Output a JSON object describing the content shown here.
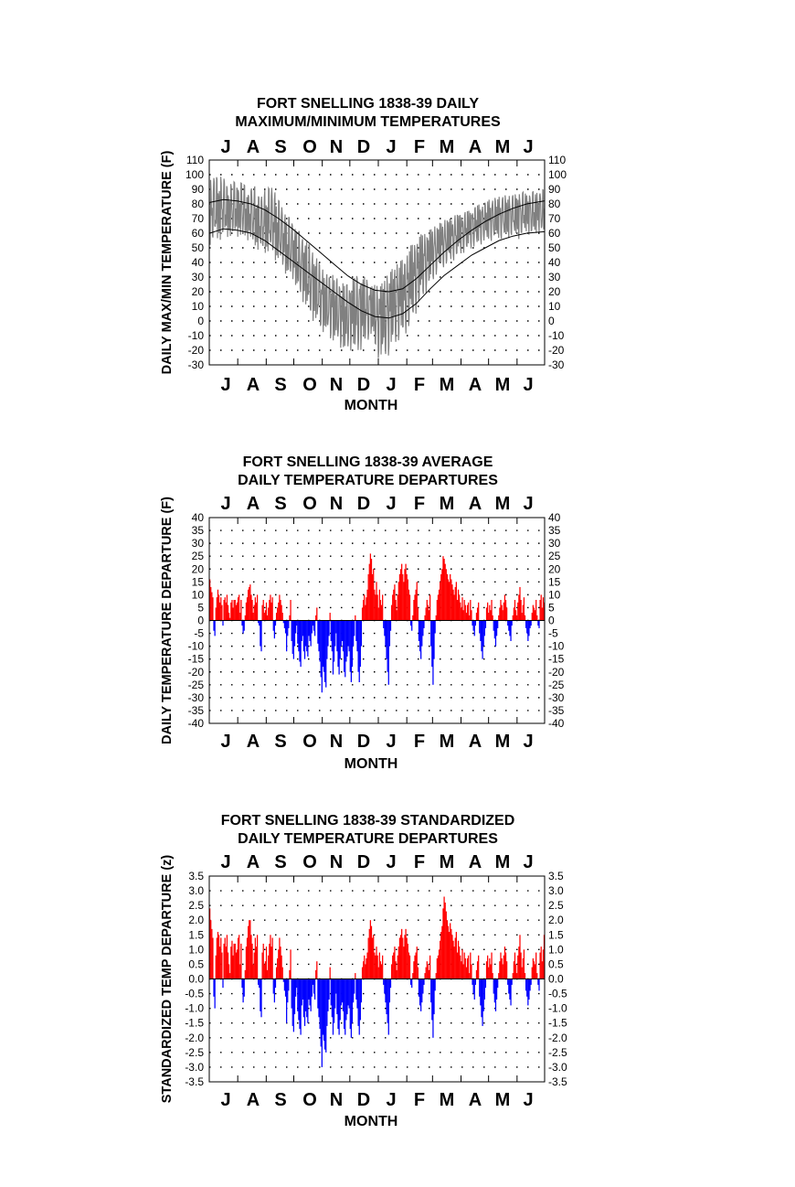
{
  "chart_data": [
    {
      "type": "line",
      "title_lines": [
        "FORT SNELLING 1838-39 DAILY",
        "MAXIMUM/MINIMUM TEMPERATURES"
      ],
      "xlabel": "MONTH",
      "ylabel": "DAILY MAX/MIN TEMPERATURE (F)",
      "ylim": [
        -30,
        110
      ],
      "yticks": [
        "110",
        "100",
        "90",
        "80",
        "70",
        "60",
        "50",
        "40",
        "30",
        "20",
        "10",
        "0",
        "-10",
        "-20",
        "-30"
      ],
      "months": [
        "J",
        "A",
        "S",
        "O",
        "N",
        "D",
        "J",
        "F",
        "M",
        "A",
        "M",
        "J"
      ],
      "grid": true,
      "colors": {
        "observed": "#808080",
        "normals": "#000000"
      },
      "series": [
        {
          "role": "observed-envelope",
          "x": [
            0,
            7,
            14,
            21,
            28,
            35,
            42,
            49,
            56,
            63,
            70,
            77,
            84,
            91,
            98,
            105,
            112,
            119,
            126,
            133,
            140,
            147,
            154,
            161,
            168,
            175,
            182,
            189,
            196,
            203,
            210,
            217,
            224,
            231,
            238,
            245,
            252,
            259,
            266,
            273,
            280,
            287,
            294,
            301,
            308,
            315,
            322,
            329,
            336,
            343,
            350,
            357,
            364
          ],
          "high": [
            96,
            100,
            98,
            93,
            96,
            95,
            90,
            92,
            85,
            93,
            90,
            80,
            72,
            68,
            60,
            56,
            48,
            40,
            32,
            32,
            28,
            25,
            28,
            32,
            30,
            26,
            24,
            28,
            34,
            40,
            42,
            50,
            56,
            60,
            62,
            65,
            68,
            70,
            72,
            74,
            75,
            78,
            80,
            82,
            84,
            85,
            86,
            86,
            88,
            88,
            88,
            89,
            90
          ],
          "low": [
            52,
            54,
            56,
            57,
            58,
            56,
            55,
            50,
            46,
            46,
            42,
            38,
            30,
            27,
            16,
            8,
            0,
            -5,
            -10,
            -14,
            -17,
            -22,
            -20,
            -22,
            -18,
            -10,
            -25,
            -28,
            -22,
            -15,
            -12,
            -5,
            5,
            15,
            22,
            30,
            36,
            38,
            42,
            45,
            48,
            50,
            52,
            54,
            55,
            56,
            55,
            58,
            56,
            60,
            58,
            60,
            58
          ]
        },
        {
          "role": "normal-max",
          "x": [
            0,
            15,
            30,
            45,
            60,
            75,
            90,
            105,
            120,
            135,
            150,
            165,
            180,
            195,
            210,
            225,
            240,
            255,
            270,
            285,
            300,
            315,
            330,
            345,
            364
          ],
          "values": [
            81,
            83,
            82,
            80,
            76,
            70,
            63,
            55,
            47,
            39,
            31,
            25,
            21,
            20,
            22,
            29,
            38,
            47,
            55,
            62,
            68,
            73,
            77,
            80,
            82
          ]
        },
        {
          "role": "normal-min",
          "x": [
            0,
            15,
            30,
            45,
            60,
            75,
            90,
            105,
            120,
            135,
            150,
            165,
            180,
            195,
            210,
            225,
            240,
            255,
            270,
            285,
            300,
            315,
            330,
            345,
            364
          ],
          "values": [
            60,
            63,
            62,
            60,
            55,
            48,
            41,
            34,
            27,
            20,
            13,
            7,
            3,
            2,
            5,
            12,
            22,
            31,
            38,
            45,
            50,
            55,
            58,
            60,
            61
          ]
        }
      ]
    },
    {
      "type": "bar",
      "title_lines": [
        "FORT SNELLING 1838-39 AVERAGE",
        "DAILY TEMPERATURE DEPARTURES"
      ],
      "xlabel": "MONTH",
      "ylabel": "DAILY TEMPERATURE DEPARTURE (F)",
      "ylim": [
        -40,
        40
      ],
      "yticks": [
        "40",
        "35",
        "30",
        "25",
        "20",
        "15",
        "10",
        "5",
        "0",
        "-5",
        "-10",
        "-15",
        "-20",
        "-25",
        "-30",
        "-35",
        "-40"
      ],
      "months": [
        "J",
        "A",
        "S",
        "O",
        "N",
        "D",
        "J",
        "F",
        "M",
        "A",
        "M",
        "J"
      ],
      "grid": true,
      "colors": {
        "positive": "#ff0000",
        "negative": "#0000ff"
      },
      "values": [
        16,
        13,
        11,
        9,
        -4,
        -6,
        5,
        9,
        12,
        10,
        7,
        9,
        6,
        -2,
        8,
        9,
        7,
        10,
        6,
        3,
        1,
        7,
        8,
        5,
        8,
        8,
        6,
        7,
        9,
        10,
        3,
        8,
        -2,
        -5,
        -4,
        2,
        7,
        9,
        12,
        13,
        14,
        10,
        8,
        3,
        6,
        9,
        7,
        10,
        -1,
        -2,
        -10,
        -12,
        6,
        8,
        3,
        4,
        7,
        2,
        5,
        8,
        10,
        7,
        9,
        -4,
        -7,
        -2,
        3,
        5,
        7,
        10,
        8,
        6,
        3,
        -1,
        -3,
        -5,
        -12,
        -6,
        -3,
        2,
        8,
        -8,
        -13,
        -15,
        -10,
        -5,
        -2,
        -9,
        -12,
        -16,
        -18,
        -8,
        -6,
        -12,
        -15,
        -10,
        -12,
        -14,
        -6,
        -8,
        -10,
        -5,
        -2,
        -4,
        -6,
        2,
        5,
        -9,
        -12,
        -16,
        -22,
        -28,
        -18,
        -20,
        -24,
        -26,
        -15,
        -10,
        -6,
        3,
        -8,
        -12,
        -21,
        -16,
        -10,
        -5,
        -12,
        -18,
        -21,
        -15,
        -10,
        -8,
        -12,
        -20,
        -22,
        -16,
        -14,
        -10,
        -12,
        -20,
        -24,
        -18,
        -10,
        -6,
        2,
        -8,
        -12,
        -20,
        -24,
        -18,
        -10,
        5,
        8,
        10,
        6,
        9,
        12,
        18,
        22,
        26,
        24,
        18,
        20,
        12,
        10,
        15,
        10,
        5,
        12,
        8,
        6,
        10,
        -3,
        -6,
        -10,
        -15,
        -20,
        -25,
        -10,
        -4,
        6,
        10,
        12,
        14,
        8,
        4,
        10,
        15,
        18,
        20,
        22,
        18,
        15,
        20,
        22,
        18,
        16,
        12,
        10,
        -2,
        -4,
        2,
        8,
        10,
        12,
        15,
        5,
        -8,
        -12,
        -15,
        -10,
        -6,
        -3,
        2,
        5,
        8,
        6,
        4,
        10,
        -10,
        -18,
        -25,
        -15,
        -5,
        2,
        8,
        10,
        12,
        15,
        18,
        20,
        25,
        24,
        22,
        20,
        18,
        16,
        15,
        18,
        16,
        14,
        12,
        10,
        13,
        15,
        8,
        12,
        10,
        7,
        5,
        9,
        4,
        8,
        6,
        3,
        6,
        7,
        2,
        8,
        4,
        -2,
        -4,
        -6,
        -2,
        3,
        5,
        7,
        -5,
        -8,
        -12,
        -15,
        -10,
        -6,
        -3,
        5,
        7,
        3,
        6,
        4,
        8,
        2,
        -4,
        -7,
        -10,
        -6,
        -3,
        2,
        5,
        8,
        6,
        4,
        7,
        10,
        8,
        5,
        -2,
        -4,
        -6,
        -8,
        -2,
        2,
        5,
        8,
        4,
        2,
        7,
        10,
        13,
        8,
        3,
        6,
        9,
        2,
        -3,
        -5,
        -8,
        -6,
        -3,
        -2,
        3,
        6,
        5,
        4,
        8,
        2,
        -2,
        -3,
        8,
        10,
        5,
        9,
        7
      ]
    },
    {
      "type": "bar",
      "title_lines": [
        "FORT SNELLING 1838-39 STANDARDIZED",
        "DAILY TEMPERATURE DEPARTURES"
      ],
      "xlabel": "MONTH",
      "ylabel": "STANDARDIZED TEMP DEPARTURE (z)",
      "ylim": [
        -3.5,
        3.5
      ],
      "yticks": [
        "3.5",
        "3.0",
        "2.5",
        "2.0",
        "1.5",
        "1.0",
        "0.5",
        "0.0",
        "-0.5",
        "-1.0",
        "-1.5",
        "-2.0",
        "-2.5",
        "-3.0",
        "-3.5"
      ],
      "months": [
        "J",
        "A",
        "S",
        "O",
        "N",
        "D",
        "J",
        "F",
        "M",
        "A",
        "M",
        "J"
      ],
      "grid": true,
      "colors": {
        "positive": "#ff0000",
        "negative": "#0000ff"
      },
      "values": [
        2.4,
        2.0,
        1.7,
        1.4,
        -0.6,
        -1.0,
        0.8,
        1.4,
        1.6,
        1.5,
        1.1,
        1.4,
        0.9,
        -0.3,
        1.2,
        1.4,
        1.1,
        1.5,
        0.9,
        0.5,
        0.2,
        1.1,
        1.3,
        0.8,
        1.2,
        1.2,
        0.9,
        1.0,
        1.4,
        1.5,
        0.5,
        1.2,
        -0.3,
        -0.8,
        -0.6,
        0.3,
        1.1,
        1.4,
        1.8,
        2.0,
        2.0,
        1.5,
        1.2,
        0.5,
        0.9,
        1.4,
        1.1,
        1.5,
        -0.2,
        -0.3,
        -1.1,
        -1.3,
        0.9,
        1.2,
        0.5,
        0.6,
        1.1,
        0.3,
        0.8,
        1.2,
        1.5,
        1.1,
        1.4,
        -0.5,
        -0.8,
        -0.3,
        0.4,
        0.7,
        1.0,
        1.4,
        1.1,
        0.8,
        0.4,
        -0.1,
        -0.4,
        -0.6,
        -1.5,
        -0.8,
        -0.4,
        0.3,
        1.0,
        -1.0,
        -1.6,
        -1.8,
        -1.2,
        -0.6,
        -0.3,
        -1.1,
        -1.4,
        -1.7,
        -1.9,
        -0.9,
        -0.7,
        -1.3,
        -1.6,
        -1.1,
        -1.3,
        -1.5,
        -0.7,
        -0.9,
        -1.1,
        -0.6,
        -0.2,
        -0.5,
        -0.7,
        0.3,
        0.6,
        -1.0,
        -1.3,
        -1.7,
        -2.3,
        -3.0,
        -1.9,
        -2.1,
        -2.4,
        -2.5,
        -1.6,
        -1.1,
        -0.7,
        0.4,
        -0.9,
        -1.3,
        -1.9,
        -1.5,
        -1.0,
        -0.5,
        -1.2,
        -1.7,
        -1.9,
        -1.4,
        -0.9,
        -0.8,
        -1.1,
        -1.7,
        -1.9,
        -1.4,
        -1.2,
        -0.9,
        -1.0,
        -1.7,
        -2.0,
        -1.5,
        -0.8,
        -0.5,
        0.2,
        -0.7,
        -1.0,
        -1.6,
        -1.9,
        -1.4,
        -0.8,
        0.4,
        0.6,
        0.8,
        0.5,
        0.7,
        0.9,
        1.4,
        1.7,
        2.0,
        1.8,
        1.4,
        1.5,
        0.9,
        0.8,
        1.1,
        0.8,
        0.4,
        0.9,
        0.6,
        0.5,
        0.8,
        -0.2,
        -0.5,
        -0.8,
        -1.2,
        -1.5,
        -1.9,
        -0.8,
        -0.3,
        0.5,
        0.8,
        0.9,
        1.1,
        0.6,
        0.3,
        0.8,
        1.1,
        1.4,
        1.5,
        1.7,
        1.4,
        1.1,
        1.5,
        1.7,
        1.4,
        1.2,
        0.9,
        0.8,
        -0.2,
        -0.3,
        0.2,
        0.6,
        0.8,
        0.9,
        1.1,
        0.4,
        -0.6,
        -0.9,
        -1.1,
        -0.8,
        -0.5,
        -0.2,
        0.2,
        0.4,
        0.6,
        0.5,
        0.3,
        0.8,
        -0.8,
        -1.4,
        -2.0,
        -1.2,
        -0.4,
        0.2,
        0.7,
        0.8,
        1.0,
        1.3,
        1.6,
        1.8,
        2.4,
        2.8,
        2.6,
        2.3,
        2.0,
        1.8,
        1.6,
        1.9,
        1.7,
        1.5,
        1.3,
        1.1,
        1.4,
        1.6,
        0.9,
        1.3,
        1.1,
        0.8,
        0.6,
        1.0,
        0.5,
        0.9,
        0.7,
        0.4,
        0.7,
        0.8,
        0.2,
        0.9,
        0.5,
        -0.2,
        -0.5,
        -0.7,
        -0.2,
        0.3,
        0.6,
        0.8,
        -0.6,
        -0.9,
        -1.3,
        -1.6,
        -1.1,
        -0.7,
        -0.3,
        0.6,
        0.8,
        0.4,
        0.7,
        0.5,
        0.9,
        0.2,
        -0.5,
        -0.8,
        -1.1,
        -0.7,
        -0.3,
        0.2,
        0.6,
        0.9,
        0.7,
        0.5,
        0.8,
        1.1,
        0.9,
        0.6,
        -0.2,
        -0.5,
        -0.7,
        -0.9,
        -0.2,
        0.2,
        0.6,
        0.9,
        0.5,
        0.2,
        0.8,
        1.1,
        1.5,
        0.9,
        0.4,
        0.7,
        1.0,
        0.2,
        -0.4,
        -0.6,
        -0.9,
        -0.7,
        -0.4,
        -0.2,
        0.4,
        0.7,
        0.6,
        0.5,
        0.9,
        0.2,
        -0.2,
        -0.4,
        0.9,
        1.1,
        0.6,
        1.0,
        1.5
      ]
    }
  ]
}
